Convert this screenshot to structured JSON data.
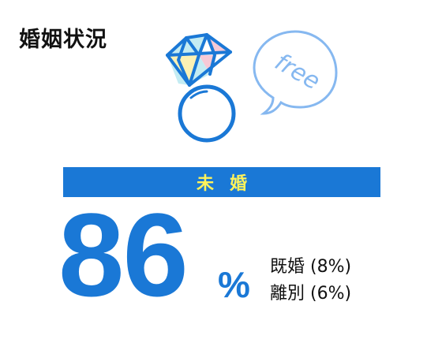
{
  "title": "婚姻状況",
  "bubble_text": "free",
  "banner_label": "未婚",
  "main_value": "86",
  "percent_sign": "%",
  "breakdown": [
    {
      "label": "既婚 (8%)"
    },
    {
      "label": "離別 (6%)"
    }
  ],
  "colors": {
    "accent": "#1a78d6",
    "banner_text": "#fff35a",
    "bubble": "#86b8f0",
    "gem_pink": "#f6c9d6",
    "gem_cyan": "#c4ecf3",
    "gem_yellow": "#fbf1b4"
  },
  "icons": {
    "ring": "diamond-ring-icon",
    "bubble": "speech-bubble-icon"
  }
}
